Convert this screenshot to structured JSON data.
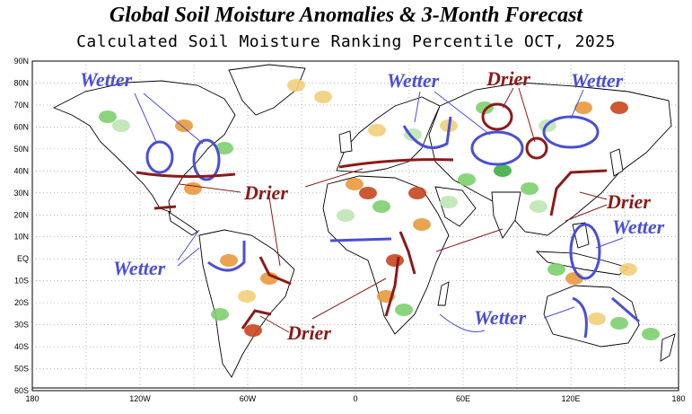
{
  "header": {
    "title": "Global Soil Moisture Anomalies & 3-Month Forecast",
    "subtitle": "Calculated Soil Moisture Ranking Percentile OCT, 2025"
  },
  "map": {
    "projection": "equirectangular",
    "lon_range": [
      -180,
      180
    ],
    "lat_range": [
      -60,
      90
    ],
    "grid": "dotted",
    "lat_ticks": [
      "90N",
      "80N",
      "70N",
      "60N",
      "50N",
      "40N",
      "30N",
      "20N",
      "10N",
      "EQ",
      "10S",
      "20S",
      "30S",
      "40S",
      "50S",
      "60S"
    ],
    "lon_ticks": [
      "180",
      "120W",
      "60W",
      "0",
      "60E",
      "120E",
      "180"
    ]
  },
  "annotations": {
    "wetter_label": "Wetter",
    "drier_label": "Drier",
    "colors": {
      "wetter": "#4a4ed6",
      "drier": "#8b1a1a"
    }
  },
  "palette": {
    "dry_strong": "#c8461e",
    "dry": "#e89a3c",
    "dry_light": "#f2cf7a",
    "wet_light": "#bfe6b4",
    "wet": "#7ed06e",
    "wet_strong": "#3cb043"
  }
}
